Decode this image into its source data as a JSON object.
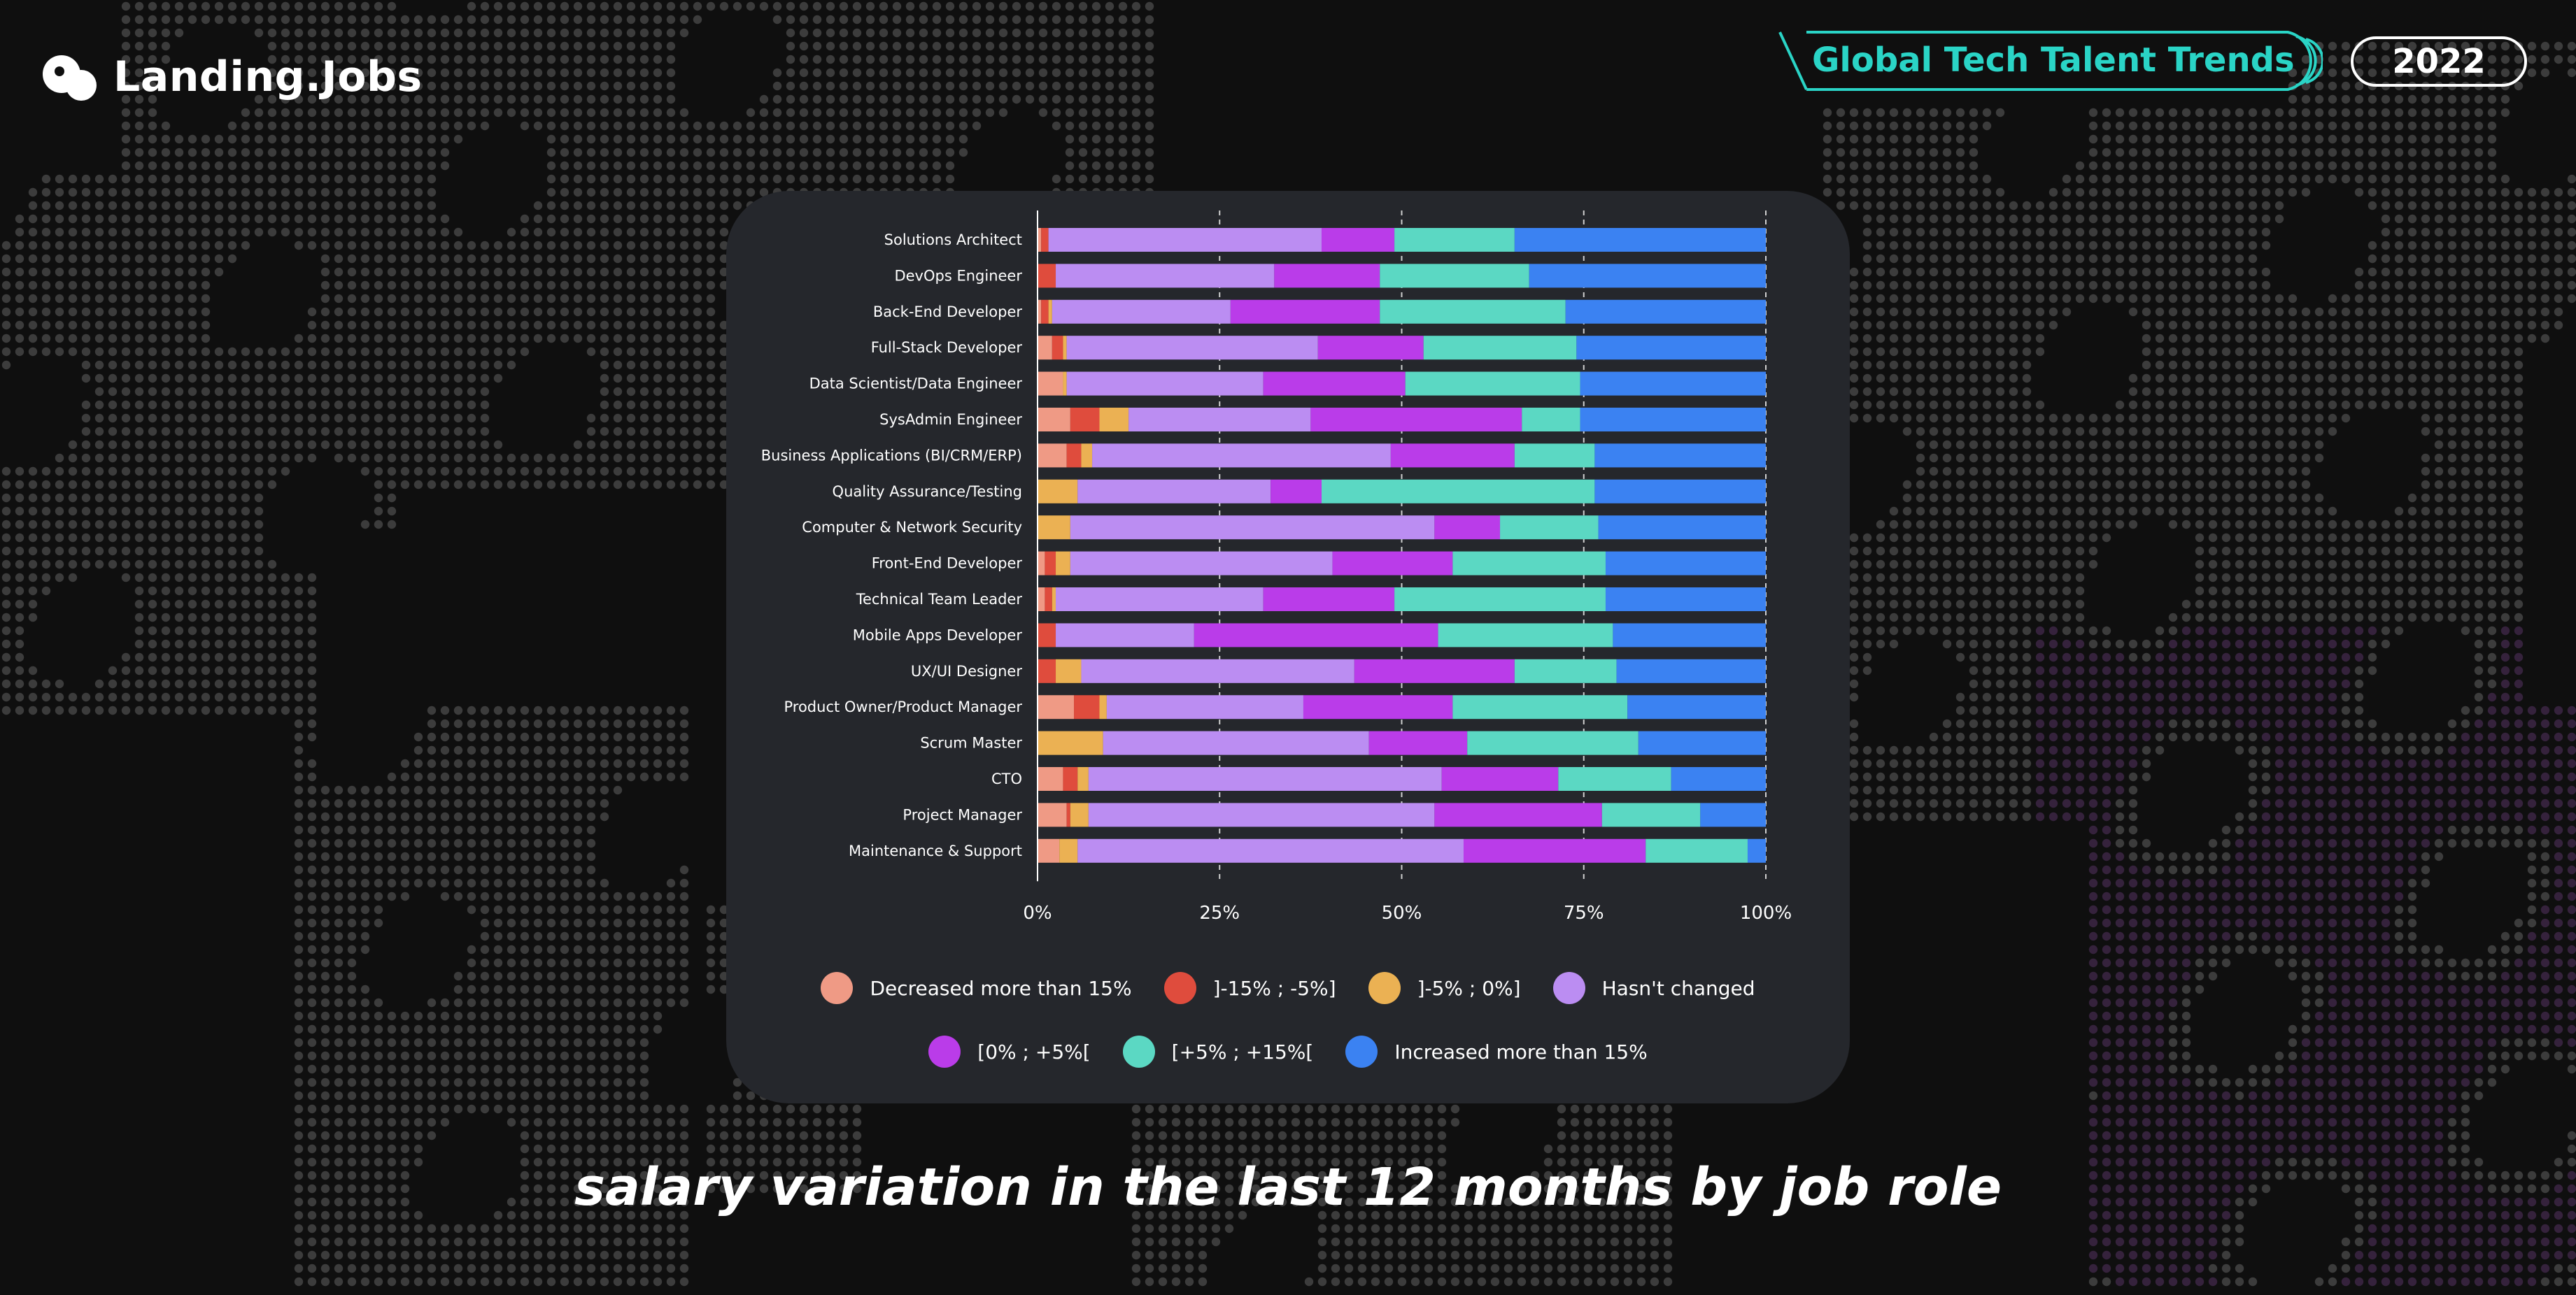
{
  "brand": {
    "name": "Landing.Jobs"
  },
  "header": {
    "report_title": "Global Tech Talent Trends",
    "year": "2022"
  },
  "subtitle": "salary variation in the last 12 months by job role",
  "colors": {
    "page_background": "#0f0f0f",
    "card_background": "#25272c",
    "accent_teal": "#2ad4c6",
    "map_dots": "#3c3c3c",
    "map_dots_highlight": "#35223c"
  },
  "chart_data": {
    "type": "bar",
    "orientation": "horizontal",
    "stacked": true,
    "percent_stacked": true,
    "categories": [
      "Solutions Architect",
      "DevOps Engineer",
      "Back-End Developer",
      "Full-Stack Developer",
      "Data Scientist/Data Engineer",
      "SysAdmin Engineer",
      "Business Applications (BI/CRM/ERP)",
      "Quality Assurance/Testing",
      "Computer & Network Security",
      "Front-End Developer",
      "Technical Team Leader",
      "Mobile Apps Developer",
      "UX/UI Designer",
      "Product Owner/Product Manager",
      "Scrum Master",
      "CTO",
      "Project Manager",
      "Maintenance & Support"
    ],
    "series": [
      {
        "name": "Decreased more than 15%",
        "color": "#ef9a85",
        "values": [
          0.5,
          0,
          0.5,
          2,
          3.5,
          4.5,
          4,
          0,
          0,
          1,
          1,
          0,
          0,
          5,
          0,
          3.5,
          4,
          3
        ]
      },
      {
        "name": "]-15% ;  -5%]",
        "color": "#df4c3d",
        "values": [
          1,
          2.5,
          1,
          1.5,
          0,
          4,
          2,
          0,
          0,
          1.5,
          1,
          2.5,
          2.5,
          3.5,
          0,
          2,
          0.5,
          0
        ]
      },
      {
        "name": "]-5% ; 0%]",
        "color": "#ebb153",
        "values": [
          0,
          0,
          0.5,
          0.5,
          0.5,
          4,
          1.5,
          5.5,
          4.5,
          2,
          0.5,
          0,
          3.5,
          1,
          9,
          1.5,
          2.5,
          2.5
        ]
      },
      {
        "name": "Hasn't changed",
        "color": "#bb8df2",
        "values": [
          37.5,
          30,
          24.5,
          34.5,
          27,
          25,
          41,
          26.5,
          50,
          36,
          28.5,
          19,
          37.5,
          27,
          36.5,
          48.5,
          47.5,
          53
        ]
      },
      {
        "name": "[0% ; +5%[",
        "color": "#ba3ce9",
        "values": [
          10,
          14.5,
          20.5,
          14.5,
          19.5,
          29,
          17,
          7,
          9,
          16.5,
          18,
          33.5,
          22,
          20.5,
          13.5,
          16,
          23,
          25
        ]
      },
      {
        "name": "[+5% ; +15%[",
        "color": "#5bd8c3",
        "values": [
          16.5,
          20.5,
          25.5,
          21,
          24,
          8,
          11,
          37.5,
          13.5,
          21,
          29,
          24,
          14,
          24,
          23.5,
          15.5,
          13.5,
          14
        ]
      },
      {
        "name": "Increased more than 15%",
        "color": "#3b82f2",
        "values": [
          34.5,
          32.5,
          27.5,
          26,
          25.5,
          25.5,
          23.5,
          23.5,
          23,
          22,
          22,
          21,
          20.5,
          19,
          17.5,
          13,
          9,
          2.5
        ]
      }
    ],
    "xlim": [
      0,
      100
    ],
    "x_ticks": [
      "0%",
      "25%",
      "50%",
      "75%",
      "100%"
    ],
    "grid": "vertical dashed",
    "legend_position": "bottom"
  }
}
